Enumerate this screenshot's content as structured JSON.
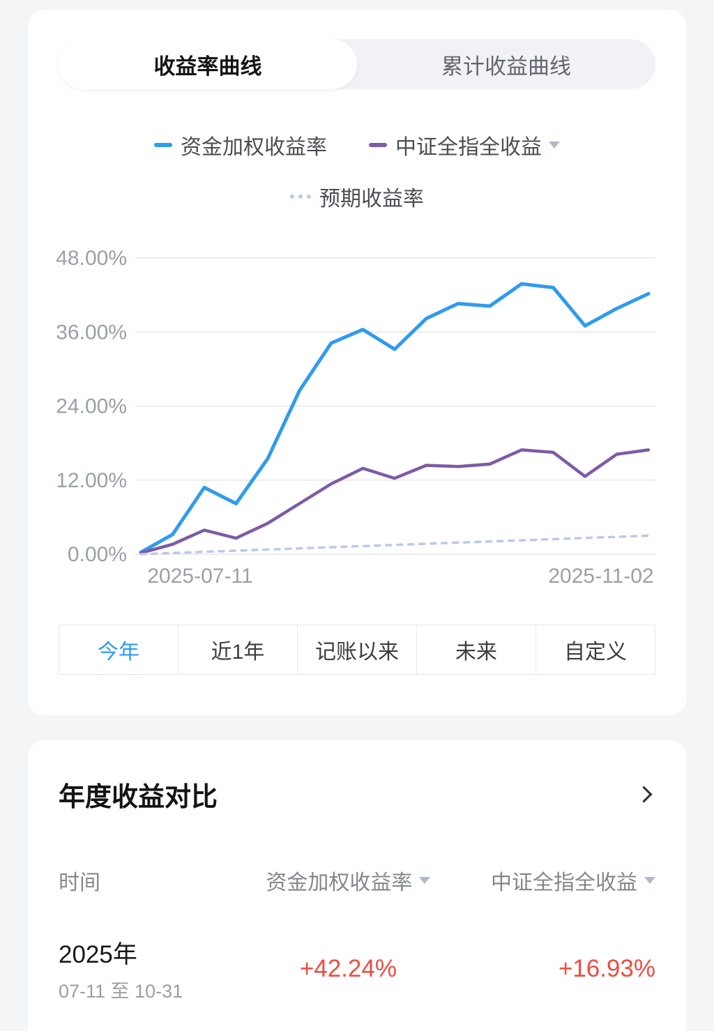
{
  "tabs": {
    "items": [
      {
        "label": "收益率曲线",
        "active": true
      },
      {
        "label": "累计收益曲线",
        "active": false
      }
    ]
  },
  "legend": [
    {
      "label": "资金加权收益率",
      "color": "#2e9bf0",
      "style": "solid",
      "dropdown": false
    },
    {
      "label": "中证全指全收益",
      "color": "#7d5ba6",
      "style": "solid",
      "dropdown": true
    },
    {
      "label": "预期收益率",
      "color": "#bcc8ea",
      "style": "dashed",
      "dropdown": false
    }
  ],
  "chart_data": {
    "type": "line",
    "title": "",
    "xlabel": "",
    "ylabel": "",
    "ylim": [
      0,
      48
    ],
    "yticks": [
      0,
      12,
      24,
      36,
      48
    ],
    "ytick_labels": [
      "0.00%",
      "12.00%",
      "24.00%",
      "36.00%",
      "48.00%"
    ],
    "x_labels": [
      "2025-07-11",
      "2025-11-02"
    ],
    "grid": true,
    "legend_position": "top",
    "series": [
      {
        "name": "资金加权收益率",
        "color": "#2e9bf0",
        "style": "solid",
        "width": 5,
        "values": [
          0.3,
          3.2,
          10.8,
          8.2,
          15.5,
          26.5,
          34.2,
          36.4,
          33.2,
          38.2,
          40.6,
          40.2,
          43.8,
          43.2,
          37.0,
          39.8,
          42.2
        ]
      },
      {
        "name": "中证全指全收益",
        "color": "#7d5ba6",
        "style": "solid",
        "width": 4.5,
        "values": [
          0.2,
          1.6,
          3.9,
          2.6,
          5.0,
          8.2,
          11.4,
          13.9,
          12.3,
          14.4,
          14.2,
          14.6,
          16.9,
          16.5,
          12.6,
          16.2,
          16.9
        ]
      },
      {
        "name": "预期收益率",
        "color": "#bcc8ea",
        "style": "dashed",
        "width": 3.5,
        "values": [
          0,
          0.19,
          0.38,
          0.56,
          0.75,
          0.94,
          1.13,
          1.31,
          1.5,
          1.69,
          1.88,
          2.06,
          2.25,
          2.44,
          2.63,
          2.81,
          3.0
        ]
      }
    ]
  },
  "range_buttons": [
    {
      "label": "今年",
      "active": true
    },
    {
      "label": "近1年",
      "active": false
    },
    {
      "label": "记账以来",
      "active": false
    },
    {
      "label": "未来",
      "active": false
    },
    {
      "label": "自定义",
      "active": false
    }
  ],
  "comparison": {
    "title": "年度收益对比",
    "columns": [
      "时间",
      "资金加权收益率",
      "中证全指全收益"
    ],
    "rows": [
      {
        "period": "2025年",
        "date_range": "07-11 至 10-31",
        "weighted_return": "+42.24%",
        "benchmark_return": "+16.93%",
        "value_color": "#ee4c41"
      }
    ]
  }
}
